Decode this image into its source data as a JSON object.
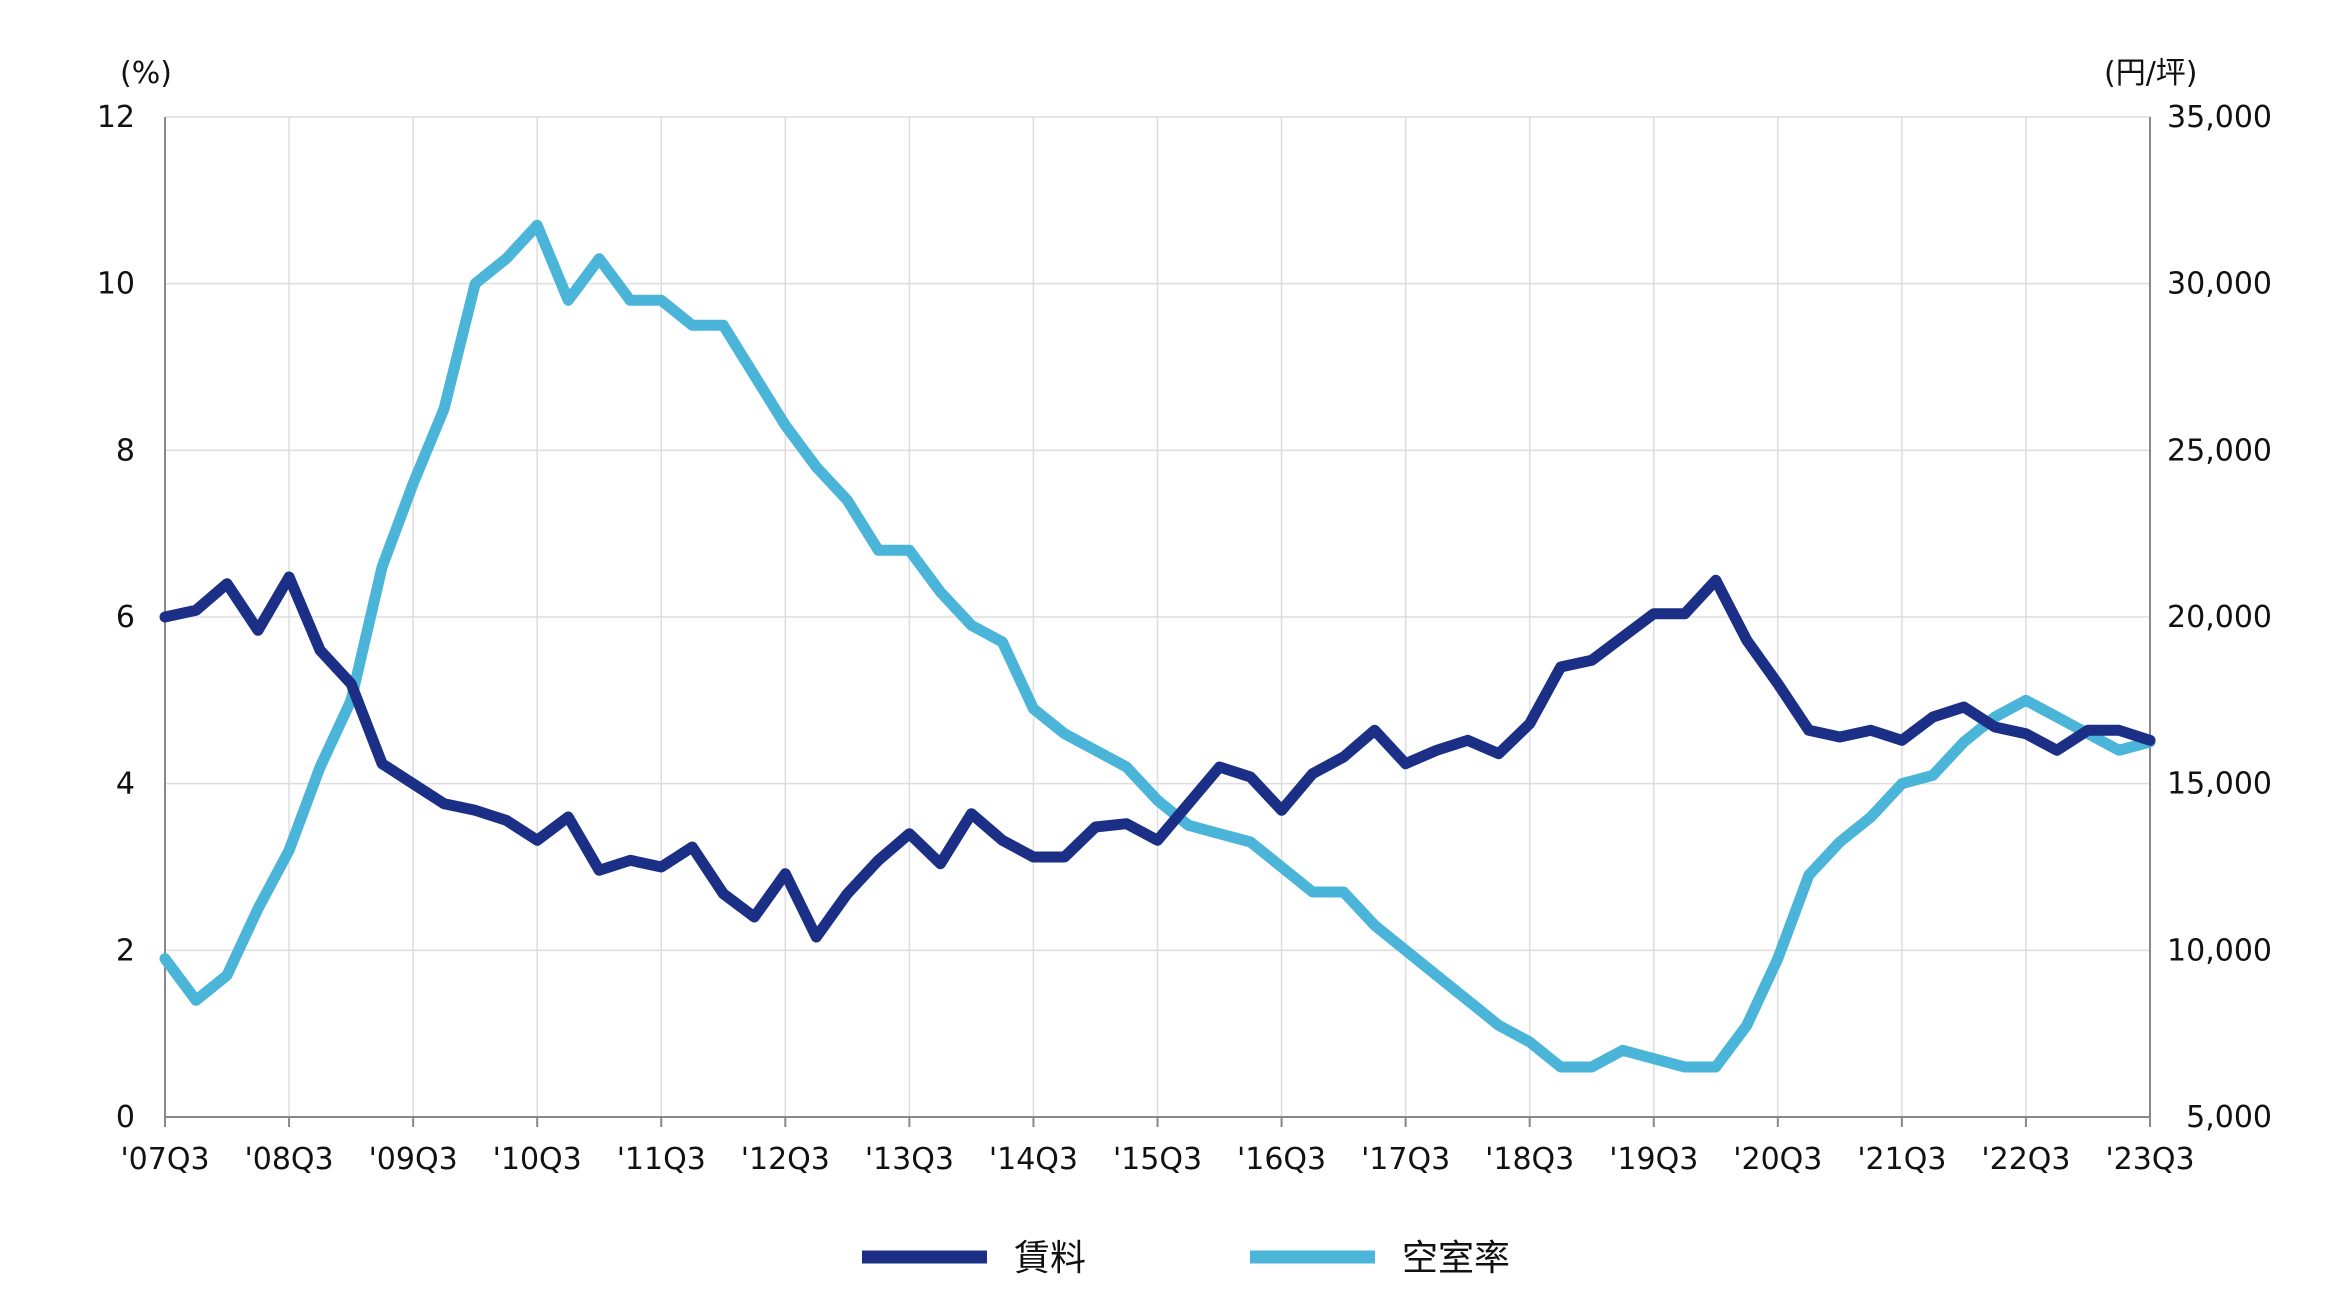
{
  "chart_data": {
    "type": "line",
    "left_axis_unit": "(%)",
    "right_axis_unit": "(円/坪)",
    "left_ylim": [
      0,
      12
    ],
    "right_ylim": [
      5000,
      35000
    ],
    "left_ticks": [
      "0",
      "2",
      "4",
      "6",
      "8",
      "10",
      "12"
    ],
    "right_ticks": [
      "5,000",
      "10,000",
      "15,000",
      "20,000",
      "25,000",
      "30,000",
      "35,000"
    ],
    "x_ticks": [
      "'07Q3",
      "'08Q3",
      "'09Q3",
      "'10Q3",
      "'11Q3",
      "'12Q3",
      "'13Q3",
      "'14Q3",
      "'15Q3",
      "'16Q3",
      "'17Q3",
      "'18Q3",
      "'19Q3",
      "'20Q3",
      "'21Q3",
      "'22Q3",
      "'23Q3"
    ],
    "grid": true,
    "legend_position": "bottom-center",
    "series": [
      {
        "name": "賃料",
        "axis": "right",
        "color": "#1b2f86",
        "values": [
          20000,
          20200,
          21000,
          19600,
          21200,
          19000,
          18000,
          15600,
          15000,
          14400,
          14200,
          13900,
          13300,
          14000,
          12400,
          12700,
          12500,
          13100,
          11700,
          11000,
          12300,
          10400,
          11700,
          12700,
          13500,
          12600,
          14100,
          13300,
          12800,
          12800,
          13700,
          13800,
          13300,
          14400,
          15500,
          15200,
          14200,
          15300,
          15800,
          16600,
          15600,
          16000,
          16300,
          15900,
          16800,
          18500,
          18700,
          19400,
          20100,
          20100,
          21100,
          19300,
          18000,
          16600,
          16400,
          16600,
          16300,
          17000,
          17300,
          16700,
          16500,
          16000,
          16600,
          16600,
          16300
        ]
      },
      {
        "name": "空室率",
        "axis": "left",
        "color": "#4ab5d8",
        "values": [
          1.9,
          1.4,
          1.7,
          2.5,
          3.2,
          4.2,
          5.0,
          6.6,
          7.6,
          8.5,
          10.0,
          10.3,
          10.7,
          9.8,
          10.3,
          9.8,
          9.8,
          9.5,
          9.5,
          8.9,
          8.3,
          7.8,
          7.4,
          6.8,
          6.8,
          6.3,
          5.9,
          5.7,
          4.9,
          4.6,
          4.4,
          4.2,
          3.8,
          3.5,
          3.4,
          3.3,
          3.0,
          2.7,
          2.7,
          2.3,
          2.0,
          1.7,
          1.4,
          1.1,
          0.9,
          0.6,
          0.6,
          0.8,
          0.7,
          0.6,
          0.6,
          1.1,
          1.9,
          2.9,
          3.3,
          3.6,
          4.0,
          4.1,
          4.5,
          4.8,
          5.0,
          4.8,
          4.6,
          4.4,
          4.5
        ]
      }
    ]
  }
}
